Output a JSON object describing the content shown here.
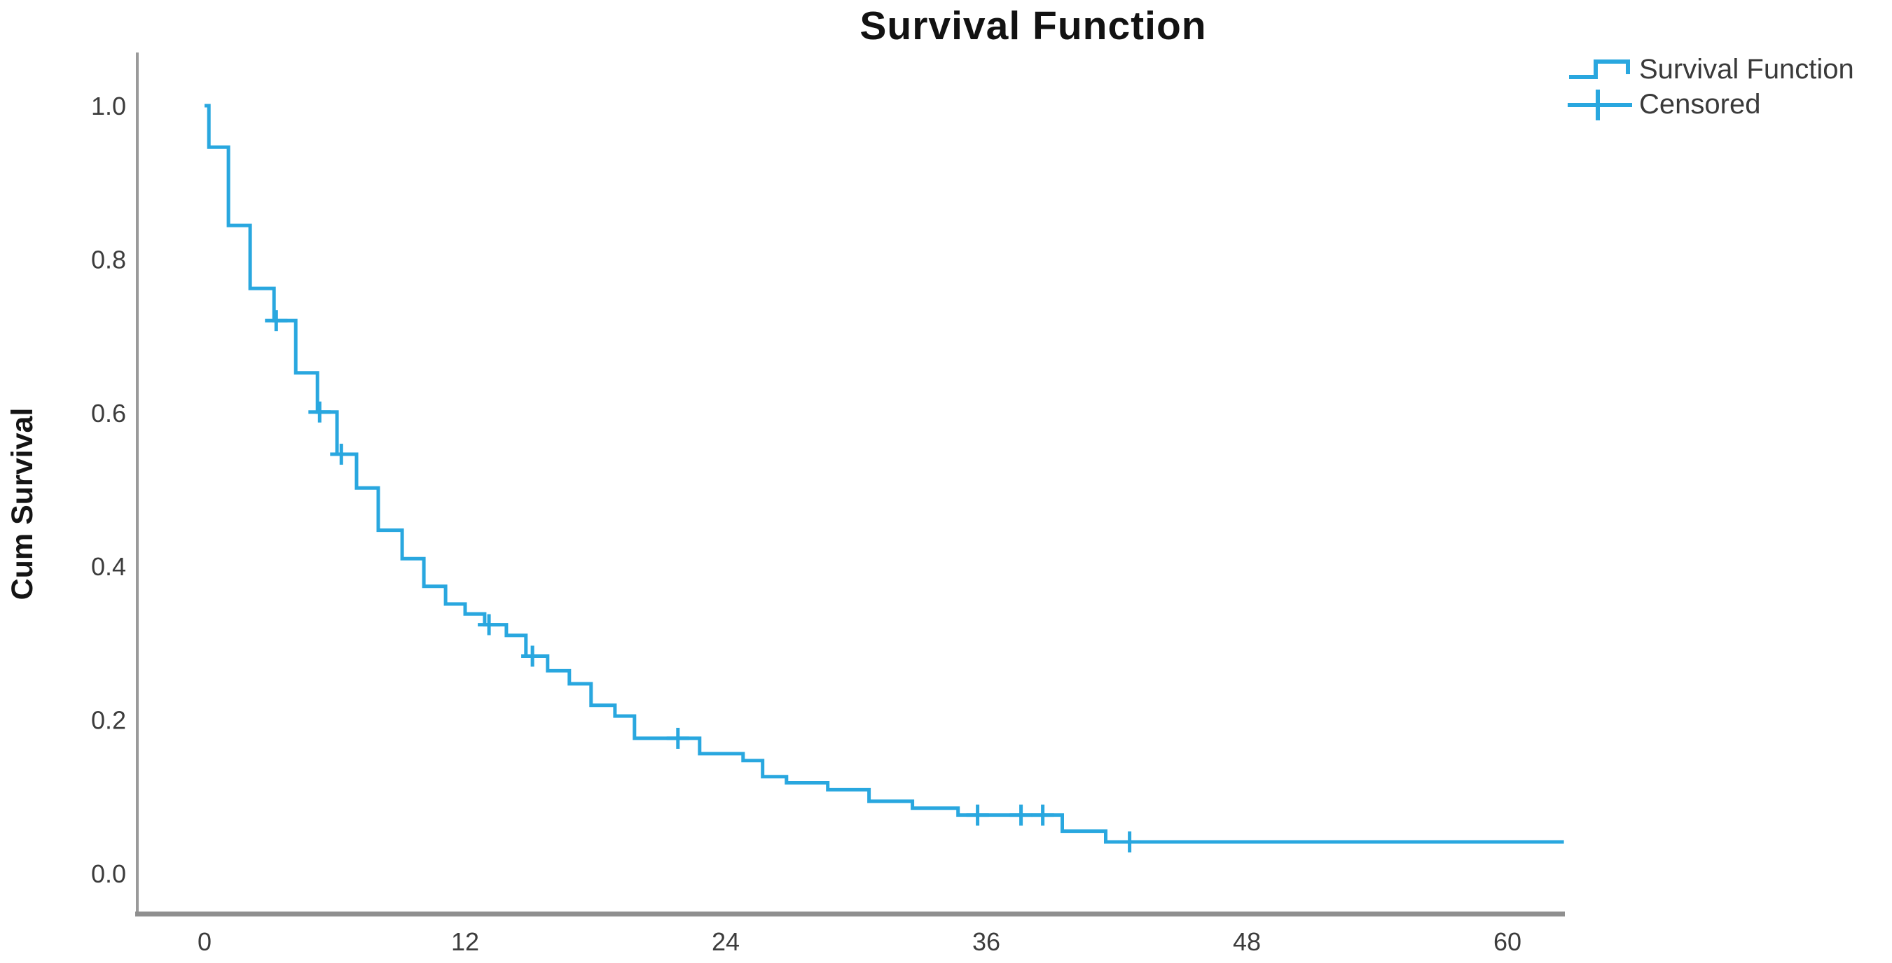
{
  "title": "Survival Function",
  "legend": {
    "items": [
      {
        "label": "Survival Function",
        "marker": "step-line"
      },
      {
        "label": "Censored",
        "marker": "plus"
      }
    ]
  },
  "axes": {
    "y_label": "Cum Survival",
    "x_tick_labels": [
      "0",
      "12",
      "24",
      "36",
      "48",
      "60"
    ],
    "y_tick_labels": [
      "0.0",
      "0.2",
      "0.4",
      "0.6",
      "0.8",
      "1.0"
    ]
  },
  "colors": {
    "series": "#29a7df",
    "axis_line": "#8f8f8f",
    "axis_line_left": "#9a9a9a",
    "title_text": "#121212",
    "tick_text": "#3c3c3c",
    "legend_text": "#3a3a3a"
  },
  "chart_data": {
    "type": "line",
    "subtype": "kaplan-meier-step",
    "title": "Survival Function",
    "xlabel": "",
    "ylabel": "Cum Survival",
    "x_ticks": [
      0,
      12,
      24,
      36,
      48,
      60
    ],
    "y_ticks": [
      0.0,
      0.2,
      0.4,
      0.6,
      0.8,
      1.0
    ],
    "xlim": [
      -3.1,
      62.9
    ],
    "ylim": [
      -0.053,
      1.069
    ],
    "grid": false,
    "legend_position": "top-right",
    "series": [
      {
        "name": "Survival Function",
        "start": [
          0,
          1.0
        ],
        "steps": [
          [
            0.2,
            0.946
          ],
          [
            1.1,
            0.844
          ],
          [
            2.1,
            0.762
          ],
          [
            3.2,
            0.72
          ],
          [
            4.2,
            0.652
          ],
          [
            5.2,
            0.601
          ],
          [
            6.1,
            0.546
          ],
          [
            7.0,
            0.502
          ],
          [
            8.0,
            0.447
          ],
          [
            9.1,
            0.41
          ],
          [
            10.1,
            0.374
          ],
          [
            11.1,
            0.351
          ],
          [
            12.0,
            0.338
          ],
          [
            12.9,
            0.324
          ],
          [
            13.9,
            0.31
          ],
          [
            14.8,
            0.283
          ],
          [
            15.8,
            0.264
          ],
          [
            16.8,
            0.247
          ],
          [
            17.8,
            0.219
          ],
          [
            18.9,
            0.205
          ],
          [
            19.8,
            0.176
          ],
          [
            22.8,
            0.156
          ],
          [
            24.8,
            0.147
          ],
          [
            25.7,
            0.126
          ],
          [
            26.8,
            0.118
          ],
          [
            28.7,
            0.109
          ],
          [
            30.6,
            0.094
          ],
          [
            32.6,
            0.085
          ],
          [
            34.7,
            0.076
          ],
          [
            39.5,
            0.055
          ],
          [
            41.5,
            0.041
          ]
        ],
        "tail_end_x": 62.6
      }
    ],
    "censored_points": [
      [
        3.3,
        0.72
      ],
      [
        5.3,
        0.601
      ],
      [
        6.3,
        0.546
      ],
      [
        13.1,
        0.324
      ],
      [
        15.1,
        0.283
      ],
      [
        21.8,
        0.176
      ],
      [
        35.6,
        0.076
      ],
      [
        37.6,
        0.076
      ],
      [
        38.6,
        0.076
      ],
      [
        42.6,
        0.041
      ]
    ]
  }
}
